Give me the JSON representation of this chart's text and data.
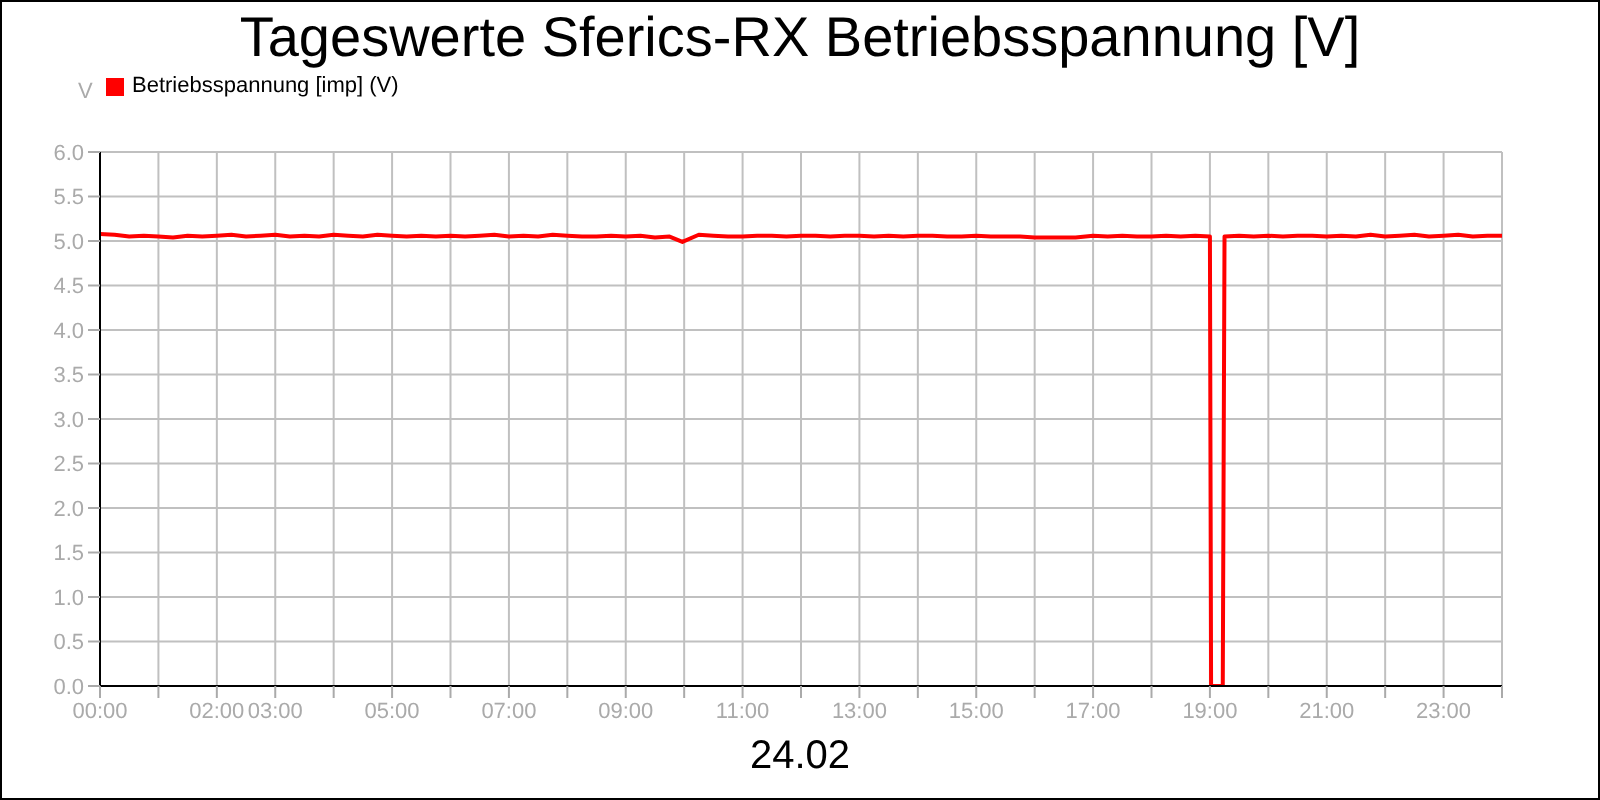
{
  "chart_data": {
    "type": "line",
    "title": "Tageswerte Sferics-RX Betriebsspannung [V]",
    "xlabel": "24.02",
    "ylabel": "V",
    "x": [
      0,
      0.25,
      0.5,
      0.75,
      1,
      1.25,
      1.5,
      1.75,
      2,
      2.25,
      2.5,
      2.75,
      3,
      3.25,
      3.5,
      3.75,
      4,
      4.25,
      4.5,
      4.75,
      5,
      5.25,
      5.5,
      5.75,
      6,
      6.25,
      6.5,
      6.75,
      7,
      7.25,
      7.5,
      7.75,
      8,
      8.25,
      8.5,
      8.75,
      9,
      9.25,
      9.5,
      9.75,
      9.97,
      10.25,
      10.5,
      10.75,
      11,
      11.25,
      11.5,
      11.75,
      12,
      12.25,
      12.5,
      12.75,
      13,
      13.25,
      13.5,
      13.75,
      14,
      14.25,
      14.5,
      14.75,
      15,
      15.25,
      15.5,
      15.75,
      16,
      16.7,
      17,
      17.25,
      17.5,
      17.75,
      18,
      18.25,
      18.5,
      18.75,
      19,
      19.02,
      19.22,
      19.25,
      19.5,
      19.75,
      20,
      20.25,
      20.5,
      20.75,
      21,
      21.25,
      21.5,
      21.75,
      22,
      22.25,
      22.5,
      22.75,
      23,
      23.25,
      23.5,
      23.75,
      24
    ],
    "series": [
      {
        "name": "Betriebsspannung [imp] (V)",
        "color": "#ff0000",
        "values": [
          5.08,
          5.07,
          5.05,
          5.06,
          5.05,
          5.04,
          5.06,
          5.05,
          5.06,
          5.07,
          5.05,
          5.06,
          5.07,
          5.05,
          5.06,
          5.05,
          5.07,
          5.06,
          5.05,
          5.07,
          5.06,
          5.05,
          5.06,
          5.05,
          5.06,
          5.05,
          5.06,
          5.07,
          5.05,
          5.06,
          5.05,
          5.07,
          5.06,
          5.05,
          5.05,
          5.06,
          5.05,
          5.06,
          5.04,
          5.05,
          4.99,
          5.07,
          5.06,
          5.05,
          5.05,
          5.06,
          5.06,
          5.05,
          5.06,
          5.06,
          5.05,
          5.06,
          5.06,
          5.05,
          5.06,
          5.05,
          5.06,
          5.06,
          5.05,
          5.05,
          5.06,
          5.05,
          5.05,
          5.05,
          5.04,
          5.04,
          5.06,
          5.05,
          5.06,
          5.05,
          5.05,
          5.06,
          5.05,
          5.06,
          5.05,
          0,
          0,
          5.05,
          5.06,
          5.05,
          5.06,
          5.05,
          5.06,
          5.06,
          5.05,
          5.06,
          5.05,
          5.07,
          5.05,
          5.06,
          5.07,
          5.05,
          5.06,
          5.07,
          5.05,
          5.06,
          5.06
        ]
      }
    ],
    "xlim": [
      0,
      24
    ],
    "xticks": [
      {
        "value": 0,
        "label": "00:00"
      },
      {
        "value": 1,
        "label": null
      },
      {
        "value": 2,
        "label": "02:00"
      },
      {
        "value": 3,
        "label": "03:00"
      },
      {
        "value": 4,
        "label": null
      },
      {
        "value": 5,
        "label": "05:00"
      },
      {
        "value": 6,
        "label": null
      },
      {
        "value": 7,
        "label": "07:00"
      },
      {
        "value": 8,
        "label": null
      },
      {
        "value": 9,
        "label": "09:00"
      },
      {
        "value": 10,
        "label": null
      },
      {
        "value": 11,
        "label": "11:00"
      },
      {
        "value": 12,
        "label": null
      },
      {
        "value": 13,
        "label": "13:00"
      },
      {
        "value": 14,
        "label": null
      },
      {
        "value": 15,
        "label": "15:00"
      },
      {
        "value": 16,
        "label": null
      },
      {
        "value": 17,
        "label": "17:00"
      },
      {
        "value": 18,
        "label": null
      },
      {
        "value": 19,
        "label": "19:00"
      },
      {
        "value": 20,
        "label": null
      },
      {
        "value": 21,
        "label": "21:00"
      },
      {
        "value": 22,
        "label": null
      },
      {
        "value": 23,
        "label": "23:00"
      },
      {
        "value": 24,
        "label": null
      }
    ],
    "ylim": [
      0,
      6
    ],
    "yticks": [
      {
        "value": 0,
        "label": "0.0"
      },
      {
        "value": 0.5,
        "label": "0.5"
      },
      {
        "value": 1,
        "label": "1.0"
      },
      {
        "value": 1.5,
        "label": "1.5"
      },
      {
        "value": 2,
        "label": "2.0"
      },
      {
        "value": 2.5,
        "label": "2.5"
      },
      {
        "value": 3,
        "label": "3.0"
      },
      {
        "value": 3.5,
        "label": "3.5"
      },
      {
        "value": 4,
        "label": "4.0"
      },
      {
        "value": 4.5,
        "label": "4.5"
      },
      {
        "value": 5,
        "label": "5.0"
      },
      {
        "value": 5.5,
        "label": "5.5"
      },
      {
        "value": 6,
        "label": "6.0"
      }
    ],
    "grid": true,
    "legend": "top left",
    "marker": "none",
    "line_style": "solid"
  }
}
